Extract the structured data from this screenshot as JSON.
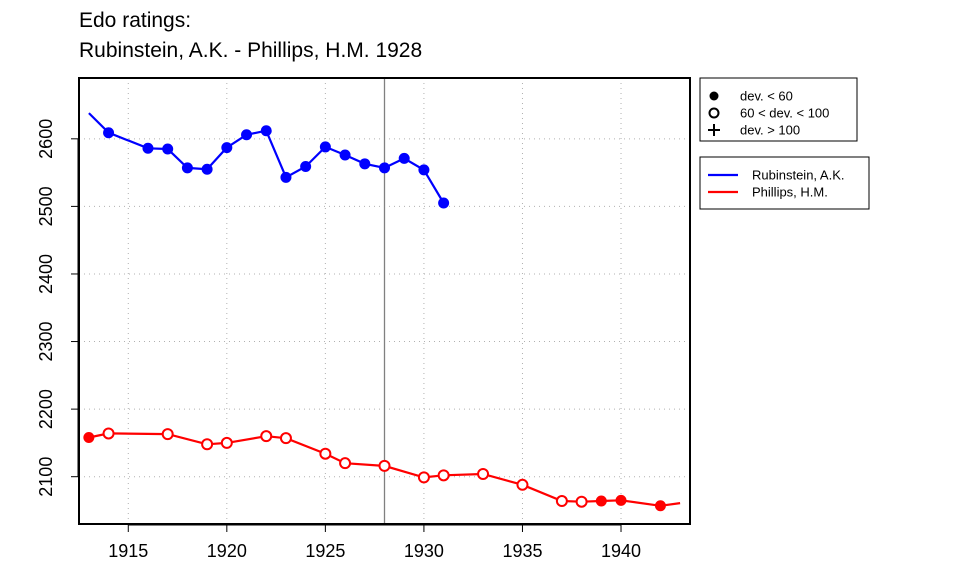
{
  "chart_data": {
    "type": "line",
    "title_line1": "Edo ratings:",
    "title_line2": "Rubinstein, A.K. - Phillips, H.M. 1928",
    "xlabel": "",
    "ylabel": "",
    "xlim": [
      1912.5,
      1943.5
    ],
    "ylim": [
      2030,
      2690
    ],
    "x_ticks": [
      1915,
      1920,
      1925,
      1930,
      1935,
      1940
    ],
    "y_ticks": [
      2100,
      2200,
      2300,
      2400,
      2500,
      2600
    ],
    "grid": true,
    "marker_line_x": 1928,
    "deviation_legend": [
      {
        "symbol": "filled-circle",
        "label": "dev. < 60"
      },
      {
        "symbol": "open-circle",
        "label": "60 < dev. < 100"
      },
      {
        "symbol": "plus",
        "label": "dev. > 100"
      }
    ],
    "series": [
      {
        "name": "Rubinstein, A.K.",
        "color": "#0000ff",
        "x": [
          1913,
          1914,
          1916,
          1917,
          1918,
          1919,
          1920,
          1921,
          1922,
          1923,
          1924,
          1925,
          1926,
          1927,
          1928,
          1929,
          1930,
          1931
        ],
        "y": [
          2638,
          2609,
          2586,
          2585,
          2557,
          2555,
          2587,
          2606,
          2612,
          2543,
          2559,
          2588,
          2576,
          2563,
          2557,
          2571,
          2554,
          2505
        ],
        "markers": [
          "none",
          "filled",
          "filled",
          "filled",
          "filled",
          "filled",
          "filled",
          "filled",
          "filled",
          "filled",
          "filled",
          "filled",
          "filled",
          "filled",
          "filled",
          "filled",
          "filled",
          "filled"
        ]
      },
      {
        "name": "Phillips, H.M.",
        "color": "#ff0000",
        "x": [
          1913,
          1914,
          1917,
          1919,
          1920,
          1922,
          1923,
          1925,
          1926,
          1928,
          1930,
          1931,
          1933,
          1935,
          1937,
          1938,
          1939,
          1940,
          1942,
          1943
        ],
        "y": [
          2158,
          2164,
          2163,
          2148,
          2150,
          2160,
          2157,
          2134,
          2120,
          2116,
          2099,
          2102,
          2104,
          2088,
          2064,
          2063,
          2064,
          2065,
          2057,
          2061
        ],
        "markers": [
          "filled",
          "open",
          "open",
          "open",
          "open",
          "open",
          "open",
          "open",
          "open",
          "open",
          "open",
          "open",
          "open",
          "open",
          "open",
          "open",
          "filled",
          "filled",
          "filled",
          "none"
        ]
      }
    ]
  }
}
